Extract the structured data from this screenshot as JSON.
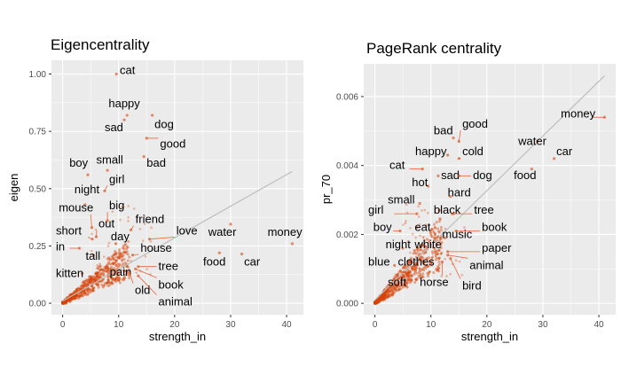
{
  "colors": {
    "panel": "#ebebeb",
    "grid": "#ffffff",
    "point": "#d8440c",
    "fit": "#bdbdbd",
    "leader": "#e8623a"
  },
  "chart_data": [
    {
      "type": "scatter",
      "title": "Eigencentrality",
      "xlabel": "strength_in",
      "ylabel": "eigen",
      "xlim": [
        -2,
        43
      ],
      "ylim": [
        -0.05,
        1.06
      ],
      "xticks": [
        0,
        10,
        20,
        30,
        40
      ],
      "yticks": [
        0,
        0.25,
        0.5,
        0.75,
        1.0
      ],
      "ytick_labels": [
        "0.00",
        "0.25",
        "0.50",
        "0.75",
        "1.00"
      ],
      "grid": true,
      "fit_line": [
        [
          0,
          0.01
        ],
        [
          41,
          0.575
        ]
      ],
      "cloud": {
        "x_max": 12,
        "y_max": 0.2
      },
      "labels": [
        {
          "text": "cat",
          "x": 9.6,
          "y": 1.0,
          "lx": 10.2,
          "ly": 1.0
        },
        {
          "text": "happy",
          "x": 11.5,
          "y": 0.82,
          "lx": 8.2,
          "ly": 0.855
        },
        {
          "text": "sad",
          "x": 11.0,
          "y": 0.8,
          "lx": 7.5,
          "ly": 0.75
        },
        {
          "text": "dog",
          "x": 16.0,
          "y": 0.82,
          "lx": 16.4,
          "ly": 0.765
        },
        {
          "text": "good",
          "x": 15.0,
          "y": 0.72,
          "lx": 17.4,
          "ly": 0.68
        },
        {
          "text": "bad",
          "x": 14.5,
          "y": 0.64,
          "lx": 15.0,
          "ly": 0.595
        },
        {
          "text": "boy",
          "x": 4.5,
          "y": 0.56,
          "lx": 1.2,
          "ly": 0.595
        },
        {
          "text": "small",
          "x": 8.0,
          "y": 0.58,
          "lx": 6.0,
          "ly": 0.61
        },
        {
          "text": "girl",
          "x": 7.5,
          "y": 0.49,
          "lx": 8.3,
          "ly": 0.525
        },
        {
          "text": "night",
          "x": 4.0,
          "y": 0.43,
          "lx": 2.1,
          "ly": 0.48
        },
        {
          "text": "big",
          "x": 8.0,
          "y": 0.36,
          "lx": 8.3,
          "ly": 0.41
        },
        {
          "text": "mouse",
          "x": 5.2,
          "y": 0.33,
          "lx": -0.7,
          "ly": 0.4
        },
        {
          "text": "friend",
          "x": 12.2,
          "y": 0.32,
          "lx": 13.0,
          "ly": 0.35
        },
        {
          "text": "out",
          "x": 6.0,
          "y": 0.29,
          "lx": 6.4,
          "ly": 0.33
        },
        {
          "text": "short",
          "x": 5.3,
          "y": 0.28,
          "lx": -1.2,
          "ly": 0.3
        },
        {
          "text": "love",
          "x": 15.5,
          "y": 0.28,
          "lx": 20.3,
          "ly": 0.3
        },
        {
          "text": "water",
          "x": 30.0,
          "y": 0.345,
          "lx": 26.0,
          "ly": 0.295
        },
        {
          "text": "money",
          "x": 41.0,
          "y": 0.26,
          "lx": 36.6,
          "ly": 0.295
        },
        {
          "text": "day",
          "x": 9.5,
          "y": 0.26,
          "lx": 8.6,
          "ly": 0.275
        },
        {
          "text": "in",
          "x": 3.0,
          "y": 0.24,
          "lx": -1.2,
          "ly": 0.23
        },
        {
          "text": "house",
          "x": 12.5,
          "y": 0.21,
          "lx": 13.9,
          "ly": 0.225
        },
        {
          "text": "tall",
          "x": 5.5,
          "y": 0.21,
          "lx": 4.1,
          "ly": 0.19
        },
        {
          "text": "food",
          "x": 28.0,
          "y": 0.22,
          "lx": 25.1,
          "ly": 0.165
        },
        {
          "text": "car",
          "x": 32.0,
          "y": 0.215,
          "lx": 32.4,
          "ly": 0.165
        },
        {
          "text": "tree",
          "x": 13.5,
          "y": 0.16,
          "lx": 17.1,
          "ly": 0.145
        },
        {
          "text": "kitten",
          "x": 3.5,
          "y": 0.13,
          "lx": -1.2,
          "ly": 0.115
        },
        {
          "text": "pain",
          "x": 9.5,
          "y": 0.14,
          "lx": 8.4,
          "ly": 0.12
        },
        {
          "text": "book",
          "x": 13.0,
          "y": 0.15,
          "lx": 17.1,
          "ly": 0.065
        },
        {
          "text": "old",
          "x": 12.0,
          "y": 0.13,
          "lx": 12.9,
          "ly": 0.04
        },
        {
          "text": "animal",
          "x": 13.5,
          "y": 0.12,
          "lx": 17.1,
          "ly": -0.01
        }
      ]
    },
    {
      "type": "scatter",
      "title": "PageRank centrality",
      "xlabel": "strength_in",
      "ylabel": "pr_70",
      "xlim": [
        -2,
        43
      ],
      "ylim": [
        -0.00033,
        0.00695
      ],
      "xticks": [
        0,
        10,
        20,
        30,
        40
      ],
      "yticks": [
        0,
        0.002,
        0.004,
        0.006
      ],
      "ytick_labels": [
        "0.000",
        "0.002",
        "0.004",
        "0.006"
      ],
      "grid": true,
      "fit_line": [
        [
          0,
          0.0001
        ],
        [
          41,
          0.0066
        ]
      ],
      "cloud": {
        "x_max": 12,
        "y_max": 0.0018
      },
      "labels": [
        {
          "text": "money",
          "x": 41.0,
          "y": 0.0054,
          "lx": 33.2,
          "ly": 0.0054
        },
        {
          "text": "good",
          "x": 15.0,
          "y": 0.0047,
          "lx": 15.6,
          "ly": 0.0051
        },
        {
          "text": "bad",
          "x": 14.0,
          "y": 0.0048,
          "lx": 10.5,
          "ly": 0.0049
        },
        {
          "text": "water",
          "x": 29.0,
          "y": 0.0047,
          "lx": 25.6,
          "ly": 0.0046
        },
        {
          "text": "happy",
          "x": 13.0,
          "y": 0.0043,
          "lx": 7.2,
          "ly": 0.0043
        },
        {
          "text": "cold",
          "x": 15.0,
          "y": 0.0042,
          "lx": 15.6,
          "ly": 0.0043
        },
        {
          "text": "car",
          "x": 32.0,
          "y": 0.0042,
          "lx": 32.4,
          "ly": 0.0043
        },
        {
          "text": "cat",
          "x": 8.5,
          "y": 0.0039,
          "lx": 2.6,
          "ly": 0.0039
        },
        {
          "text": "sad",
          "x": 11.3,
          "y": 0.0037,
          "lx": 11.8,
          "ly": 0.0036
        },
        {
          "text": "dog",
          "x": 15.0,
          "y": 0.0037,
          "lx": 17.5,
          "ly": 0.0036
        },
        {
          "text": "food",
          "x": 28.0,
          "y": 0.0039,
          "lx": 24.8,
          "ly": 0.0036
        },
        {
          "text": "hot",
          "x": 9.5,
          "y": 0.0034,
          "lx": 6.6,
          "ly": 0.0034
        },
        {
          "text": "hard",
          "x": 13.5,
          "y": 0.0031,
          "lx": 13.0,
          "ly": 0.0031
        },
        {
          "text": "small",
          "x": 8.0,
          "y": 0.0029,
          "lx": 2.3,
          "ly": 0.0029
        },
        {
          "text": "girl",
          "x": 7.5,
          "y": 0.0026,
          "lx": -1.2,
          "ly": 0.0026
        },
        {
          "text": "black",
          "x": 11.5,
          "y": 0.0027,
          "lx": 10.5,
          "ly": 0.0026
        },
        {
          "text": "tree",
          "x": 14.0,
          "y": 0.0026,
          "lx": 17.7,
          "ly": 0.0026
        },
        {
          "text": "boy",
          "x": 4.5,
          "y": 0.0021,
          "lx": -0.3,
          "ly": 0.0021
        },
        {
          "text": "eat",
          "x": 7.5,
          "y": 0.0022,
          "lx": 7.1,
          "ly": 0.0021
        },
        {
          "text": "book",
          "x": 14.5,
          "y": 0.0021,
          "lx": 19.1,
          "ly": 0.0021
        },
        {
          "text": "music",
          "x": 12.5,
          "y": 0.0019,
          "lx": 12.0,
          "ly": 0.0019
        },
        {
          "text": "night",
          "x": 5.0,
          "y": 0.0016,
          "lx": 1.9,
          "ly": 0.0016
        },
        {
          "text": "white",
          "x": 8.5,
          "y": 0.0017,
          "lx": 7.1,
          "ly": 0.0016
        },
        {
          "text": "paper",
          "x": 13.0,
          "y": 0.0015,
          "lx": 19.1,
          "ly": 0.0015
        },
        {
          "text": "blue",
          "x": 3.5,
          "y": 0.0011,
          "lx": -1.2,
          "ly": 0.0011
        },
        {
          "text": "clothes",
          "x": 6.5,
          "y": 0.0012,
          "lx": 4.1,
          "ly": 0.0011
        },
        {
          "text": "animal",
          "x": 13.0,
          "y": 0.0014,
          "lx": 16.9,
          "ly": 0.001
        },
        {
          "text": "soft",
          "x": 5.0,
          "y": 0.0009,
          "lx": 2.3,
          "ly": 0.0005
        },
        {
          "text": "horse",
          "x": 12.0,
          "y": 0.0012,
          "lx": 8.0,
          "ly": 0.0005
        },
        {
          "text": "bird",
          "x": 13.5,
          "y": 0.0013,
          "lx": 15.6,
          "ly": 0.0004
        }
      ]
    }
  ]
}
